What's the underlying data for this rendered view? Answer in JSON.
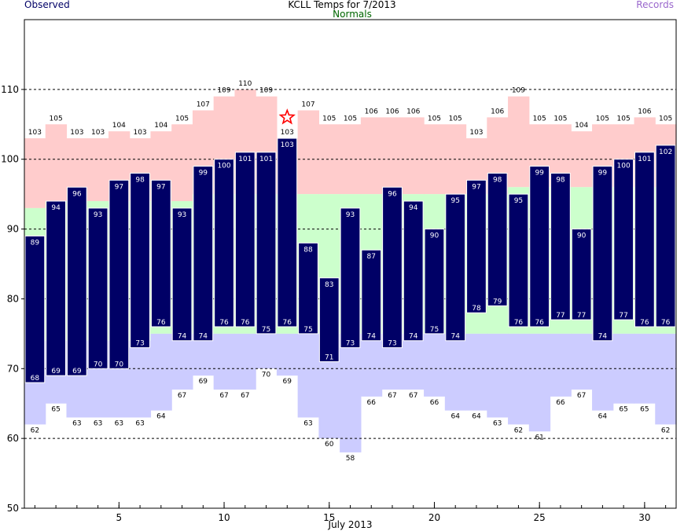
{
  "header": {
    "title": "KCLL Temps for 7/2013",
    "observed_label": "Observed",
    "normals_label": "Normals",
    "records_label": "Records"
  },
  "colors": {
    "observed_bar": "#000066",
    "normal_band": "#ccffcc",
    "record_high_band": "#ffcccc",
    "record_low_band": "#ccccff",
    "observed_text": "#000066",
    "normals_text": "#006600",
    "records_text": "#9966cc",
    "record_marker": "#ff0000"
  },
  "chart_data": {
    "type": "bar",
    "title": "KCLL Temps for 7/2013",
    "xlabel": "July 2013",
    "ylabel": "",
    "ylim": [
      50,
      120
    ],
    "yticks": [
      50,
      60,
      70,
      80,
      90,
      100,
      110
    ],
    "xticks": [
      5,
      10,
      15,
      20,
      25,
      30
    ],
    "grid": true,
    "legend": [
      "Observed",
      "Normals",
      "Records"
    ],
    "days": [
      1,
      2,
      3,
      4,
      5,
      6,
      7,
      8,
      9,
      10,
      11,
      12,
      13,
      14,
      15,
      16,
      17,
      18,
      19,
      20,
      21,
      22,
      23,
      24,
      25,
      26,
      27,
      28,
      29,
      30,
      31
    ],
    "series": [
      {
        "name": "Observed",
        "high": [
          89,
          94,
          96,
          93,
          97,
          98,
          97,
          93,
          99,
          100,
          101,
          101,
          103,
          88,
          83,
          93,
          87,
          96,
          94,
          90,
          95,
          97,
          98,
          95,
          99,
          98,
          90,
          99,
          100,
          101,
          102
        ],
        "low": [
          68,
          69,
          69,
          70,
          70,
          73,
          76,
          74,
          74,
          76,
          76,
          75,
          76,
          75,
          71,
          73,
          74,
          73,
          74,
          75,
          74,
          78,
          79,
          76,
          76,
          77,
          77,
          74,
          77,
          76,
          76
        ]
      },
      {
        "name": "Normals",
        "high": [
          93,
          94,
          94,
          94,
          94,
          94,
          94,
          94,
          95,
          95,
          95,
          95,
          95,
          95,
          95,
          95,
          95,
          95,
          95,
          95,
          95,
          95,
          95,
          96,
          96,
          96,
          96,
          96,
          96,
          96,
          96
        ],
        "low": [
          74,
          74,
          74,
          74,
          74,
          74,
          75,
          75,
          75,
          75,
          75,
          75,
          75,
          75,
          75,
          75,
          75,
          75,
          75,
          75,
          75,
          75,
          75,
          75,
          75,
          75,
          75,
          75,
          75,
          75,
          75
        ]
      },
      {
        "name": "Records",
        "high": [
          103,
          105,
          103,
          103,
          104,
          103,
          104,
          105,
          107,
          109,
          110,
          109,
          103,
          107,
          105,
          105,
          106,
          106,
          106,
          105,
          105,
          103,
          106,
          109,
          105,
          105,
          104,
          105,
          105,
          106,
          105
        ],
        "low": [
          62,
          65,
          63,
          63,
          63,
          63,
          64,
          67,
          69,
          67,
          67,
          70,
          69,
          63,
          60,
          58,
          66,
          67,
          67,
          66,
          64,
          64,
          63,
          62,
          61,
          66,
          67,
          64,
          65,
          65,
          62
        ]
      }
    ],
    "record_marker": {
      "day": 13,
      "value": 106,
      "symbol": "star"
    }
  }
}
